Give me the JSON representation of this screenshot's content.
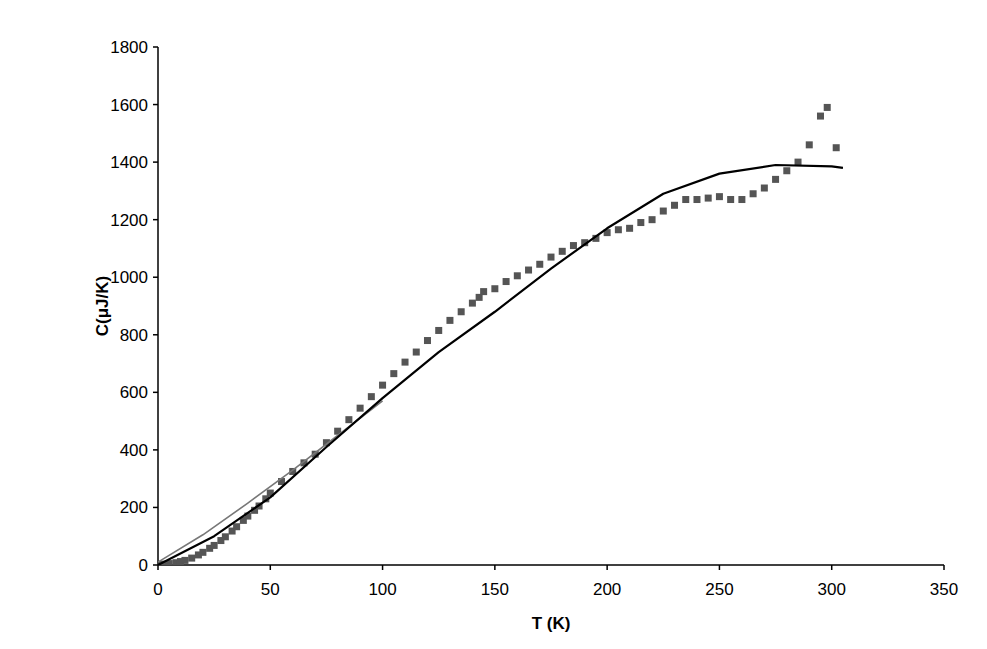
{
  "chart_data": {
    "type": "scatter",
    "x_label": "T (K)",
    "y_label": "C(μJ/K)",
    "xlim": [
      0,
      350
    ],
    "xticks": [
      0,
      50,
      100,
      150,
      200,
      250,
      300,
      350
    ],
    "ylim": [
      0,
      1800
    ],
    "yticks": [
      0,
      200,
      400,
      600,
      800,
      1000,
      1200,
      1400,
      1600,
      1800
    ],
    "grid": false,
    "series": [
      {
        "type": "scatter",
        "marker": "square",
        "color": "#555555",
        "x": [
          2,
          5,
          8,
          10,
          12,
          15,
          18,
          20,
          23,
          25,
          28,
          30,
          33,
          35,
          38,
          40,
          43,
          45,
          48,
          50,
          55,
          60,
          65,
          70,
          75,
          80,
          85,
          90,
          95,
          100,
          105,
          110,
          115,
          120,
          125,
          130,
          135,
          140,
          143,
          145,
          150,
          155,
          160,
          165,
          170,
          175,
          180,
          185,
          190,
          195,
          200,
          205,
          210,
          215,
          220,
          225,
          230,
          235,
          240,
          245,
          250,
          255,
          260,
          265,
          270,
          275,
          280,
          285,
          290,
          295,
          298,
          302
        ],
        "values": [
          3,
          5,
          8,
          12,
          16,
          24,
          35,
          44,
          58,
          68,
          85,
          98,
          118,
          133,
          155,
          170,
          190,
          205,
          230,
          250,
          290,
          325,
          355,
          385,
          425,
          465,
          505,
          545,
          585,
          625,
          665,
          705,
          740,
          780,
          815,
          850,
          880,
          910,
          930,
          950,
          960,
          985,
          1005,
          1025,
          1045,
          1070,
          1090,
          1110,
          1120,
          1135,
          1155,
          1165,
          1170,
          1190,
          1200,
          1230,
          1250,
          1270,
          1270,
          1275,
          1280,
          1270,
          1270,
          1290,
          1310,
          1340,
          1370,
          1400,
          1460,
          1560,
          1590,
          1450
        ]
      },
      {
        "type": "line",
        "line_style": "solid",
        "color": "#777777",
        "x": [
          0,
          20,
          40,
          60,
          80,
          100
        ],
        "values": [
          10,
          105,
          215,
          330,
          450,
          570
        ]
      },
      {
        "type": "line",
        "line_style": "solid",
        "color": "#000000",
        "x": [
          0,
          25,
          50,
          75,
          100,
          125,
          150,
          175,
          200,
          225,
          250,
          275,
          300,
          305
        ],
        "values": [
          0,
          100,
          235,
          410,
          580,
          740,
          880,
          1030,
          1170,
          1290,
          1360,
          1390,
          1385,
          1380
        ]
      }
    ]
  }
}
